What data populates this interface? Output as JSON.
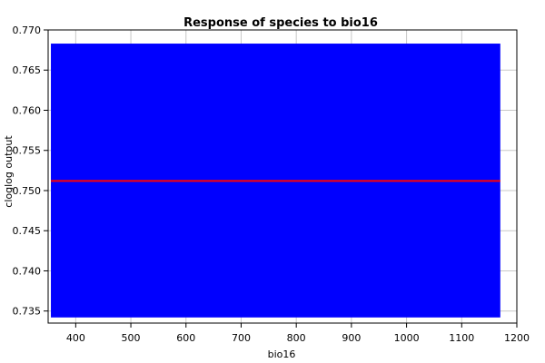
{
  "chart_data": {
    "type": "area",
    "title": "Response of species to bio16",
    "xlabel": "bio16",
    "ylabel": "cloglog output",
    "xlim": [
      350,
      1200
    ],
    "ylim": [
      0.7335,
      0.77
    ],
    "x_ticks": [
      400,
      500,
      600,
      700,
      800,
      900,
      1000,
      1100,
      1200
    ],
    "y_ticks": [
      0.735,
      0.74,
      0.745,
      0.75,
      0.755,
      0.76,
      0.765,
      0.77
    ],
    "y_tick_labels": [
      "0.735",
      "0.740",
      "0.745",
      "0.750",
      "0.755",
      "0.760",
      "0.765",
      "0.770"
    ],
    "grid": true,
    "band": {
      "x": [
        355,
        1170
      ],
      "lower": 0.7342,
      "upper": 0.7683,
      "color": "#0000ff"
    },
    "series": [
      {
        "x": [
          355,
          1170
        ],
        "values": [
          0.7512,
          0.7512
        ],
        "color": "#ff0000"
      }
    ]
  }
}
